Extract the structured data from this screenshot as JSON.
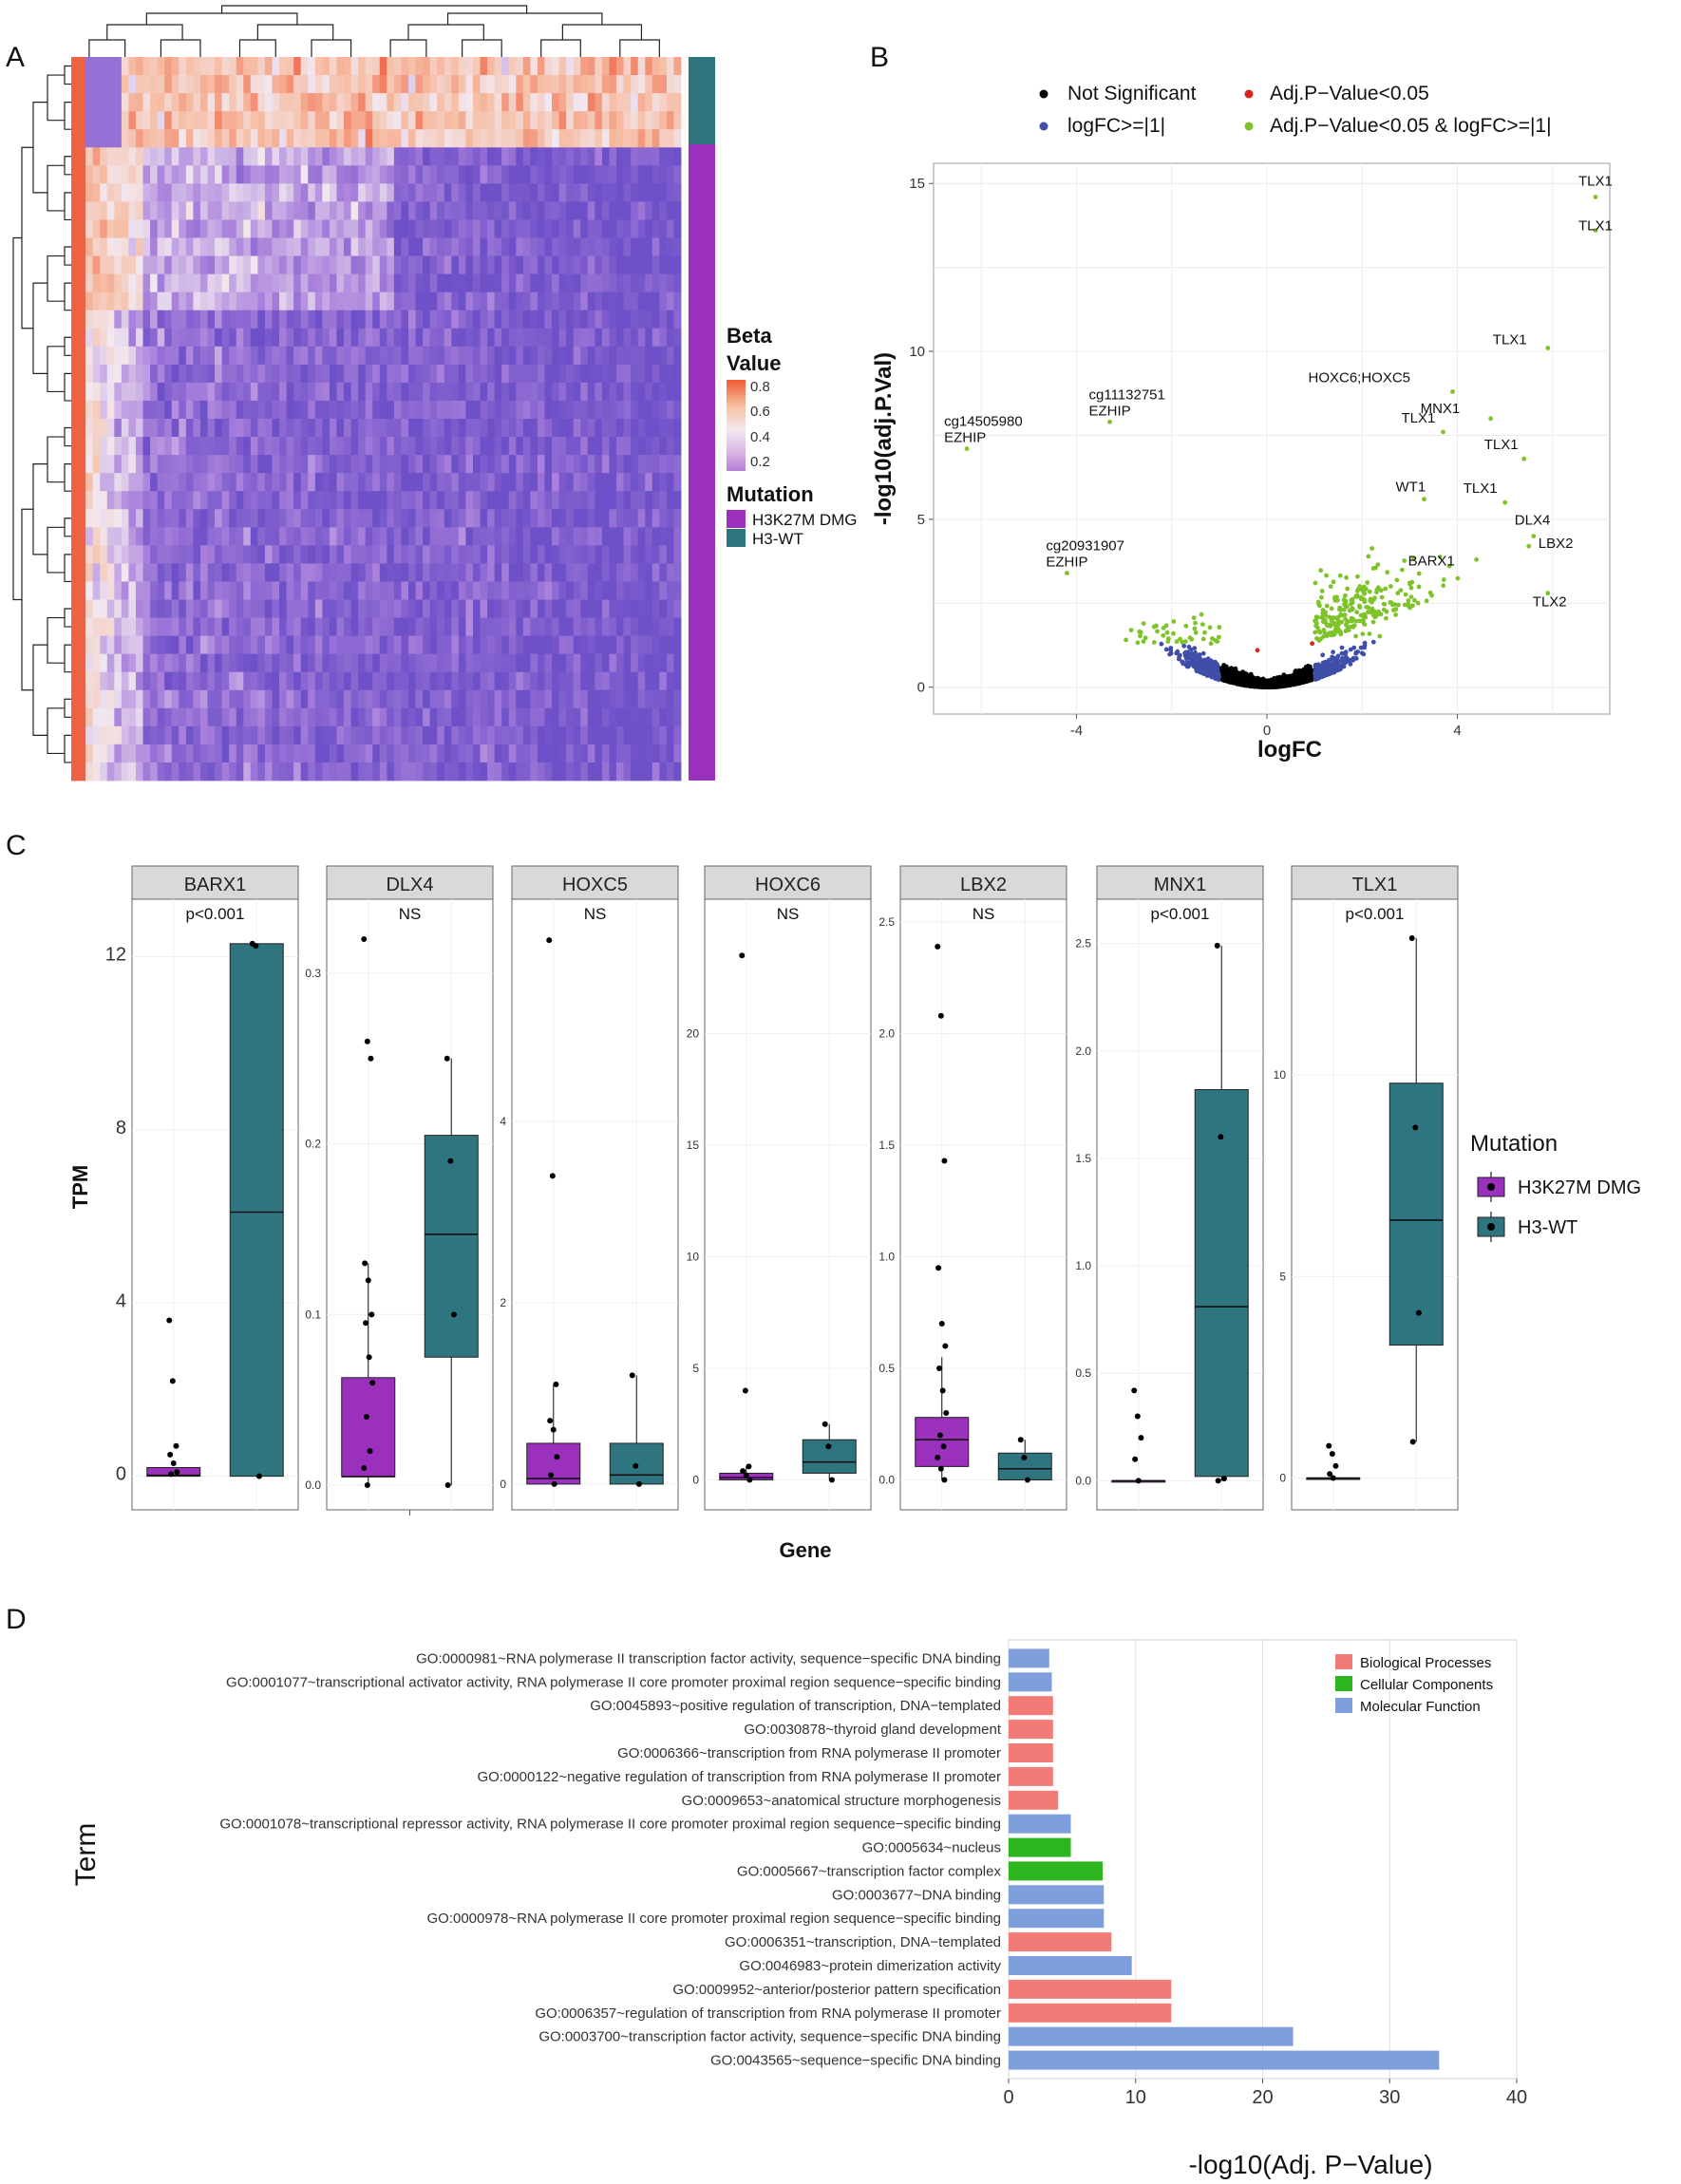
{
  "panels": {
    "a": "A",
    "b": "B",
    "c": "C",
    "d": "D"
  },
  "heatmap": {
    "legend_title_line1": "Beta",
    "legend_title_line2": "Value",
    "scale_ticks": [
      "0.8",
      "0.6",
      "0.4",
      "0.2"
    ],
    "scale_colors": [
      "#ef5a33",
      "#f7c3a5",
      "#f2e8ef",
      "#d8b4e4",
      "#b57fd4"
    ],
    "mutation_title": "Mutation",
    "mutation_entries": [
      {
        "label": "H3K27M DMG",
        "color": "#9b30bd"
      },
      {
        "label": "H3-WT",
        "color": "#2e7580"
      }
    ],
    "rows": 40,
    "cols": 85
  },
  "chart_data": [
    {
      "type": "scatter",
      "title": "",
      "xlabel": "logFC",
      "ylabel": "-log10(adj.P.Val)",
      "xlim": [
        -7,
        7.2
      ],
      "ylim": [
        -0.8,
        15.6
      ],
      "x_ticks": [
        "-4",
        "0",
        "4"
      ],
      "y_ticks": [
        "0",
        "5",
        "10",
        "15"
      ],
      "legend": [
        {
          "label": "Not Significant",
          "color": "#000000"
        },
        {
          "label": "Adj.P−Value<0.05",
          "color": "#d7261e"
        },
        {
          "label": "logFC>=|1|",
          "color": "#3f4fa8"
        },
        {
          "label": "Adj.P−Value<0.05 & logFC>=|1|",
          "color": "#7ec32a"
        }
      ],
      "labeled_points": [
        {
          "x": 6.9,
          "y": 14.6,
          "label": "TLX1"
        },
        {
          "x": 6.9,
          "y": 13.6,
          "label": "TLX1"
        },
        {
          "x": 5.9,
          "y": 10.1,
          "label": "TLX1"
        },
        {
          "x": 3.9,
          "y": 8.8,
          "label": "HOXC6;HOXC5"
        },
        {
          "x": 4.7,
          "y": 8.0,
          "label": "MNX1"
        },
        {
          "x": 3.7,
          "y": 7.6,
          "label": "TLX1"
        },
        {
          "x": 5.4,
          "y": 6.8,
          "label": "TLX1"
        },
        {
          "x": 3.3,
          "y": 5.6,
          "label": "WT1"
        },
        {
          "x": 5.0,
          "y": 5.5,
          "label": "TLX1"
        },
        {
          "x": 5.6,
          "y": 4.5,
          "label": "DLX4"
        },
        {
          "x": 5.5,
          "y": 4.2,
          "label": "LBX2"
        },
        {
          "x": 4.4,
          "y": 3.8,
          "label": "BARX1"
        },
        {
          "x": 5.9,
          "y": 2.8,
          "label": "TLX2"
        },
        {
          "x": -6.3,
          "y": 7.1,
          "label": "cg14505980 EZHIP"
        },
        {
          "x": -3.3,
          "y": 7.9,
          "label": "cg11132751 EZHIP"
        },
        {
          "x": -4.2,
          "y": 3.4,
          "label": "cg20931907 EZHIP"
        }
      ]
    },
    {
      "type": "box",
      "xlabel": "Gene",
      "ylabel": "TPM",
      "legend_title": "Mutation",
      "groups": [
        {
          "label": "H3K27M DMG",
          "color": "#9b30bd"
        },
        {
          "label": "H3-WT",
          "color": "#2e7580"
        }
      ],
      "facets": [
        {
          "gene": "BARX1",
          "p": "p<0.001",
          "ylim": [
            -0.6,
            12.8
          ],
          "ticks": [
            "0",
            "4",
            "8",
            "12"
          ],
          "boxes": [
            {
              "q1": 0.0,
              "med": 0.02,
              "q3": 0.2,
              "lo": 0,
              "hi": 0.2
            },
            {
              "q1": 0.0,
              "med": 6.1,
              "q3": 12.3,
              "lo": 0,
              "hi": 12.3
            }
          ],
          "points": [
            [
              3.6,
              2.2,
              0.7,
              0.5,
              0.3,
              0.1,
              0.05
            ],
            [
              12.3,
              12.25,
              0.0
            ]
          ]
        },
        {
          "gene": "DLX4",
          "p": "NS",
          "ylim": [
            -0.01,
            0.33
          ],
          "ticks": [
            "0.0",
            "0.1",
            "0.2",
            "0.3"
          ],
          "boxes": [
            {
              "q1": 0.005,
              "med": 0.005,
              "q3": 0.063,
              "lo": 0,
              "hi": 0.13
            },
            {
              "q1": 0.075,
              "med": 0.147,
              "q3": 0.205,
              "lo": 0,
              "hi": 0.25
            }
          ],
          "points": [
            [
              0.32,
              0.26,
              0.25,
              0.13,
              0.12,
              0.1,
              0.095,
              0.075,
              0.06,
              0.04,
              0.02,
              0.01,
              0.0
            ],
            [
              0.25,
              0.19,
              0.1,
              0.0
            ]
          ]
        },
        {
          "gene": "HOXC5",
          "p": "NS",
          "ylim": [
            -0.2,
            6.2
          ],
          "ticks": [
            "0",
            "2",
            "4"
          ],
          "boxes": [
            {
              "q1": 0.0,
              "med": 0.06,
              "q3": 0.45,
              "lo": 0,
              "hi": 1.1
            },
            {
              "q1": 0.0,
              "med": 0.1,
              "q3": 0.45,
              "lo": 0,
              "hi": 1.2
            }
          ],
          "points": [
            [
              6.0,
              3.4,
              1.1,
              0.7,
              0.6,
              0.3,
              0.1,
              0.0
            ],
            [
              1.2,
              0.2,
              0.0
            ]
          ]
        },
        {
          "gene": "HOXC6",
          "p": "NS",
          "ylim": [
            -1,
            25
          ],
          "ticks": [
            "0",
            "5",
            "10",
            "15",
            "20"
          ],
          "boxes": [
            {
              "q1": 0.0,
              "med": 0.1,
              "q3": 0.3,
              "lo": 0,
              "hi": 0.6
            },
            {
              "q1": 0.3,
              "med": 0.8,
              "q3": 1.8,
              "lo": 0,
              "hi": 2.5
            }
          ],
          "points": [
            [
              23.5,
              4.0,
              0.6,
              0.4,
              0.2,
              0.0
            ],
            [
              2.5,
              1.5,
              0.0
            ]
          ]
        },
        {
          "gene": "LBX2",
          "p": "NS",
          "ylim": [
            -0.1,
            2.5
          ],
          "ticks": [
            "0.0",
            "0.5",
            "1.0",
            "1.5",
            "2.0",
            "2.5"
          ],
          "boxes": [
            {
              "q1": 0.06,
              "med": 0.18,
              "q3": 0.28,
              "lo": 0,
              "hi": 0.55
            },
            {
              "q1": 0.0,
              "med": 0.05,
              "q3": 0.12,
              "lo": 0,
              "hi": 0.18
            }
          ],
          "points": [
            [
              2.39,
              2.08,
              1.43,
              0.95,
              0.7,
              0.6,
              0.5,
              0.4,
              0.3,
              0.2,
              0.15,
              0.1,
              0.05,
              0.0
            ],
            [
              0.18,
              0.1,
              0.0
            ]
          ]
        },
        {
          "gene": "MNX1",
          "p": "p<0.001",
          "ylim": [
            -0.1,
            2.6
          ],
          "ticks": [
            "0.0",
            "0.5",
            "1.0",
            "1.5",
            "2.0",
            "2.5"
          ],
          "boxes": [
            {
              "q1": 0.0,
              "med": 0.0,
              "q3": 0.0,
              "lo": 0,
              "hi": 0
            },
            {
              "q1": 0.02,
              "med": 0.81,
              "q3": 1.82,
              "lo": 0,
              "hi": 2.49
            }
          ],
          "points": [
            [
              0.42,
              0.3,
              0.2,
              0.1,
              0.0
            ],
            [
              2.49,
              1.6,
              0.01,
              0.0
            ]
          ]
        },
        {
          "gene": "TLX1",
          "p": "p<0.001",
          "ylim": [
            -0.6,
            13.8
          ],
          "ticks": [
            "0",
            "5",
            "10"
          ],
          "boxes": [
            {
              "q1": 0.0,
              "med": 0.0,
              "q3": 0.0,
              "lo": 0,
              "hi": 0
            },
            {
              "q1": 3.3,
              "med": 6.4,
              "q3": 9.8,
              "lo": 0.9,
              "hi": 13.4
            }
          ],
          "points": [
            [
              0.8,
              0.6,
              0.3,
              0.1,
              0.0
            ],
            [
              13.4,
              8.7,
              4.1,
              0.9
            ]
          ]
        }
      ]
    },
    {
      "type": "bar",
      "orientation": "horizontal",
      "xlabel": "-log10(Adj. P−Value)",
      "ylabel": "Term",
      "xlim": [
        0,
        40
      ],
      "x_ticks": [
        "0",
        "10",
        "20",
        "30",
        "40"
      ],
      "legend": [
        {
          "label": "Biological Processes",
          "color": "#f37b77"
        },
        {
          "label": "Cellular Components",
          "color": "#2db51f"
        },
        {
          "label": "Molecular Function",
          "color": "#7f9fdc"
        }
      ],
      "bars": [
        {
          "term": "GO:0000981~RNA polymerase II transcription factor activity, sequence−specific DNA binding",
          "value": 3.2,
          "category": 2
        },
        {
          "term": "GO:0001077~transcriptional activator activity, RNA polymerase II core promoter proximal region sequence−specific binding",
          "value": 3.4,
          "category": 2
        },
        {
          "term": "GO:0045893~positive regulation of transcription, DNA−templated",
          "value": 3.5,
          "category": 0
        },
        {
          "term": "GO:0030878~thyroid gland development",
          "value": 3.5,
          "category": 0
        },
        {
          "term": "GO:0006366~transcription from RNA polymerase II promoter",
          "value": 3.5,
          "category": 0
        },
        {
          "term": "GO:0000122~negative regulation of transcription from RNA polymerase II promoter",
          "value": 3.5,
          "category": 0
        },
        {
          "term": "GO:0009653~anatomical structure morphogenesis",
          "value": 3.9,
          "category": 0
        },
        {
          "term": "GO:0001078~transcriptional repressor activity, RNA polymerase II core promoter proximal region sequence−specific binding",
          "value": 4.9,
          "category": 2
        },
        {
          "term": "GO:0005634~nucleus",
          "value": 4.9,
          "category": 1
        },
        {
          "term": "GO:0005667~transcription factor complex",
          "value": 7.4,
          "category": 1
        },
        {
          "term": "GO:0003677~DNA binding",
          "value": 7.5,
          "category": 2
        },
        {
          "term": "GO:0000978~RNA polymerase II core promoter proximal region sequence−specific binding",
          "value": 7.5,
          "category": 2
        },
        {
          "term": "GO:0006351~transcription, DNA−templated",
          "value": 8.1,
          "category": 0
        },
        {
          "term": "GO:0046983~protein dimerization activity",
          "value": 9.7,
          "category": 2
        },
        {
          "term": "GO:0009952~anterior/posterior pattern specification",
          "value": 12.8,
          "category": 0
        },
        {
          "term": "GO:0006357~regulation of transcription from RNA polymerase II promoter",
          "value": 12.8,
          "category": 0
        },
        {
          "term": "GO:0003700~transcription factor activity, sequence−specific DNA binding",
          "value": 22.4,
          "category": 2
        },
        {
          "term": "GO:0043565~sequence−specific DNA binding",
          "value": 33.9,
          "category": 2
        }
      ]
    }
  ]
}
